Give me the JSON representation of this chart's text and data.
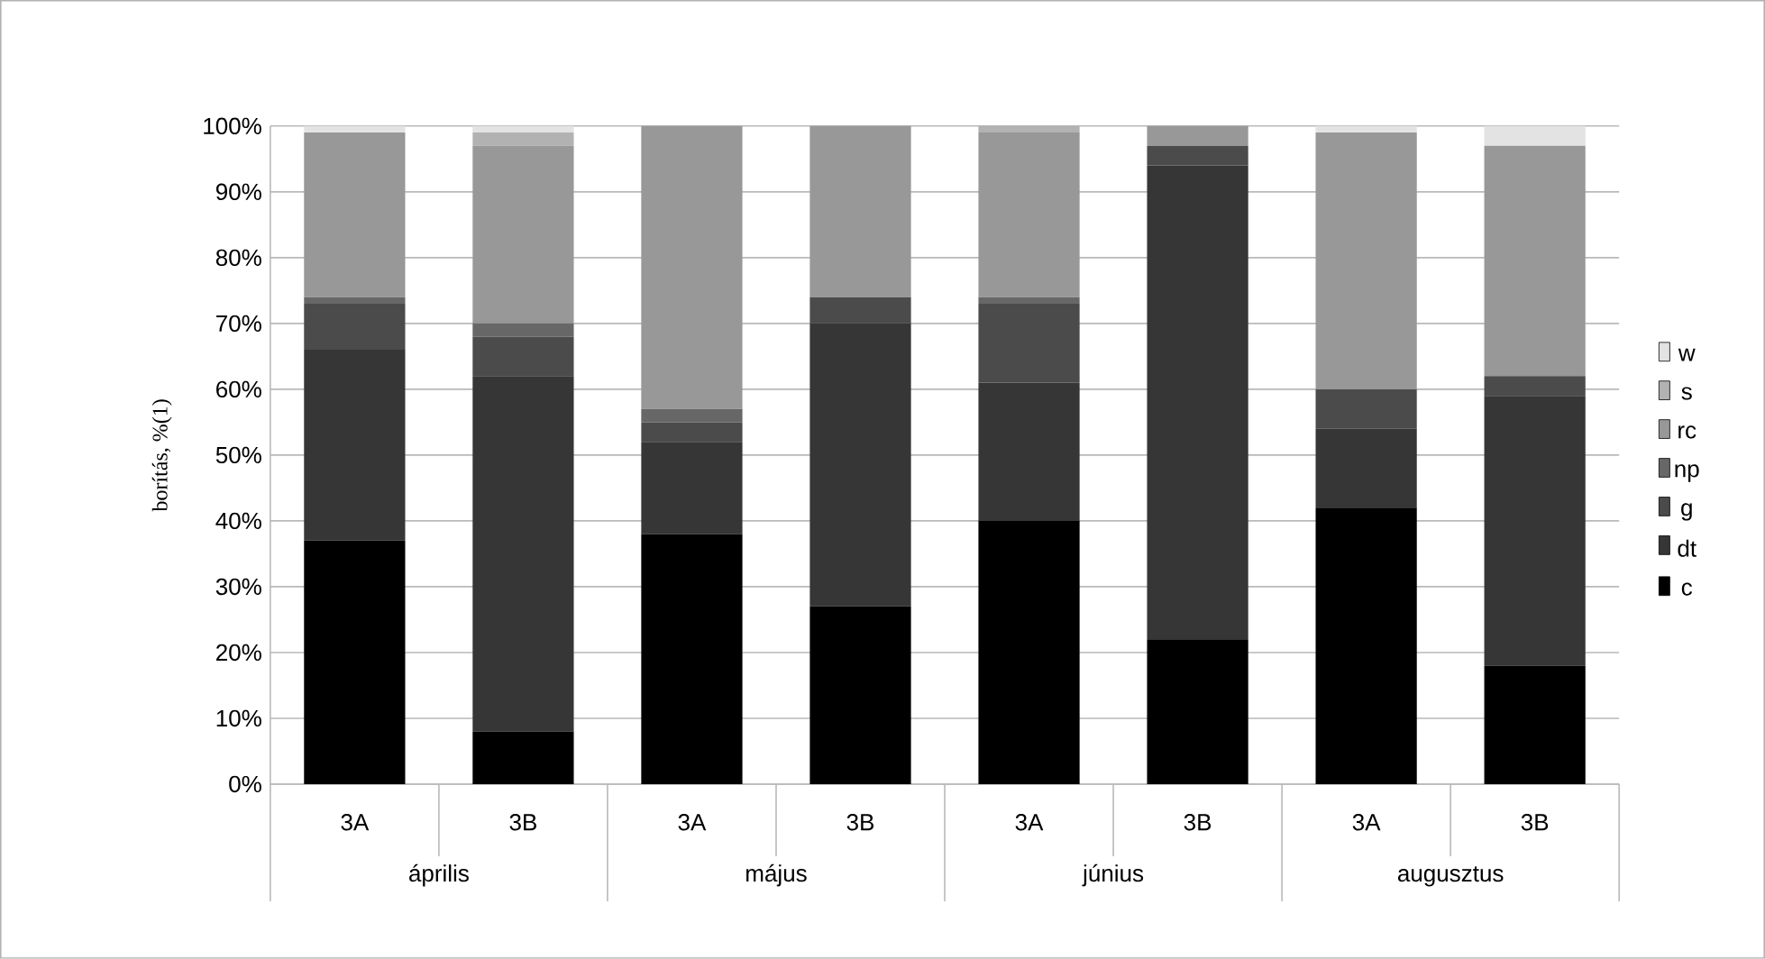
{
  "chart_data": {
    "type": "bar",
    "stacked": true,
    "ylabel": "borítás, %(1)",
    "categories": [
      "3A",
      "3B",
      "3A",
      "3B",
      "3A",
      "3B",
      "3A",
      "3B"
    ],
    "annotations": [
      "április",
      "május",
      "június",
      "augusztus"
    ],
    "series": [
      {
        "name": "c",
        "color": "#000000",
        "values": [
          37,
          8,
          38,
          27,
          40,
          22,
          42,
          18
        ]
      },
      {
        "name": "dt",
        "color": "#363636",
        "values": [
          29,
          54,
          14,
          43,
          21,
          72,
          12,
          41
        ]
      },
      {
        "name": "g",
        "color": "#4b4b4b",
        "values": [
          7,
          6,
          3,
          4,
          12,
          3,
          6,
          3
        ]
      },
      {
        "name": "np",
        "color": "#676767",
        "values": [
          1,
          2,
          2,
          0,
          1,
          0,
          0,
          0
        ]
      },
      {
        "name": "rc",
        "color": "#989898",
        "values": [
          25,
          27,
          43,
          26,
          25,
          3,
          39,
          35
        ]
      },
      {
        "name": "s",
        "color": "#b2b2b2",
        "values": [
          0,
          2,
          0,
          0,
          1,
          0,
          0,
          0
        ]
      },
      {
        "name": "w",
        "color": "#e3e3e3",
        "values": [
          1,
          1,
          0,
          0,
          0,
          0,
          1,
          3
        ]
      }
    ],
    "ylim": [
      0,
      100
    ],
    "yticks": [
      {
        "value": 0,
        "label": "0%"
      },
      {
        "value": 10,
        "label": "10%"
      },
      {
        "value": 20,
        "label": "20%"
      },
      {
        "value": 30,
        "label": "30%"
      },
      {
        "value": 40,
        "label": "40%"
      },
      {
        "value": 50,
        "label": "50%"
      },
      {
        "value": 60,
        "label": "60%"
      },
      {
        "value": 70,
        "label": "70%"
      },
      {
        "value": 80,
        "label": "80%"
      },
      {
        "value": 90,
        "label": "90%"
      },
      {
        "value": 100,
        "label": "100%"
      }
    ],
    "grid": "y",
    "legend": "right"
  }
}
